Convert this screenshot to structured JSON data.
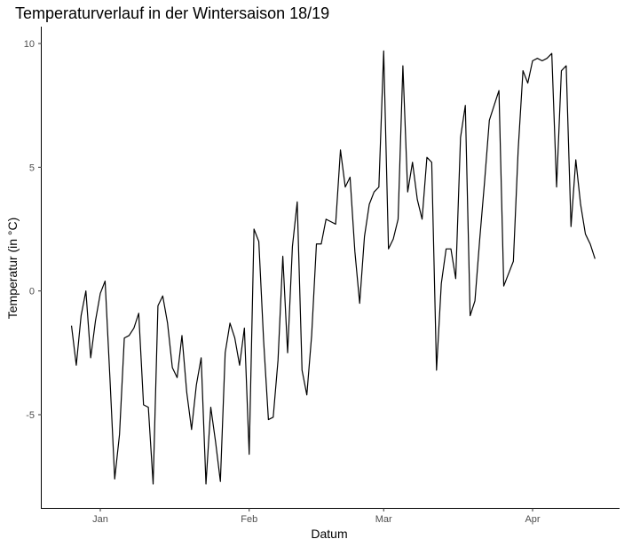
{
  "chart_data": {
    "type": "line",
    "title": "Temperaturverlauf in der Wintersaison 18/19",
    "xlabel": "Datum",
    "ylabel": "Temperatur (in °C)",
    "ylim": [
      -8.5,
      10.5
    ],
    "grid": false,
    "x_ticks": [
      {
        "label": "Jan",
        "date": "2019-01-01"
      },
      {
        "label": "Feb",
        "date": "2019-02-01"
      },
      {
        "label": "Mar",
        "date": "2019-03-01"
      },
      {
        "label": "Apr",
        "date": "2019-04-01"
      }
    ],
    "y_ticks": [
      10,
      5,
      0,
      -5
    ],
    "series": [
      {
        "color": "#000000",
        "points": [
          {
            "x": "2018-12-26",
            "y": -1.4
          },
          {
            "x": "2018-12-27",
            "y": -3.0
          },
          {
            "x": "2018-12-28",
            "y": -1.0
          },
          {
            "x": "2018-12-29",
            "y": 0.0
          },
          {
            "x": "2018-12-30",
            "y": -2.7
          },
          {
            "x": "2018-12-31",
            "y": -1.2
          },
          {
            "x": "2019-01-01",
            "y": -0.1
          },
          {
            "x": "2019-01-02",
            "y": 0.4
          },
          {
            "x": "2019-01-03",
            "y": -3.5
          },
          {
            "x": "2019-01-04",
            "y": -7.6
          },
          {
            "x": "2019-01-05",
            "y": -5.8
          },
          {
            "x": "2019-01-06",
            "y": -1.9
          },
          {
            "x": "2019-01-07",
            "y": -1.8
          },
          {
            "x": "2019-01-08",
            "y": -1.5
          },
          {
            "x": "2019-01-09",
            "y": -0.9
          },
          {
            "x": "2019-01-10",
            "y": -4.6
          },
          {
            "x": "2019-01-11",
            "y": -4.7
          },
          {
            "x": "2019-01-12",
            "y": -7.8
          },
          {
            "x": "2019-01-13",
            "y": -0.6
          },
          {
            "x": "2019-01-14",
            "y": -0.2
          },
          {
            "x": "2019-01-15",
            "y": -1.3
          },
          {
            "x": "2019-01-16",
            "y": -3.1
          },
          {
            "x": "2019-01-17",
            "y": -3.5
          },
          {
            "x": "2019-01-18",
            "y": -1.8
          },
          {
            "x": "2019-01-19",
            "y": -4.1
          },
          {
            "x": "2019-01-20",
            "y": -5.6
          },
          {
            "x": "2019-01-21",
            "y": -3.8
          },
          {
            "x": "2019-01-22",
            "y": -2.7
          },
          {
            "x": "2019-01-23",
            "y": -7.8
          },
          {
            "x": "2019-01-24",
            "y": -4.7
          },
          {
            "x": "2019-01-25",
            "y": -6.1
          },
          {
            "x": "2019-01-26",
            "y": -7.7
          },
          {
            "x": "2019-01-27",
            "y": -2.5
          },
          {
            "x": "2019-01-28",
            "y": -1.3
          },
          {
            "x": "2019-01-29",
            "y": -1.9
          },
          {
            "x": "2019-01-30",
            "y": -3.0
          },
          {
            "x": "2019-01-31",
            "y": -1.5
          },
          {
            "x": "2019-02-01",
            "y": -6.6
          },
          {
            "x": "2019-02-02",
            "y": 2.5
          },
          {
            "x": "2019-02-03",
            "y": 2.0
          },
          {
            "x": "2019-02-04",
            "y": -2.0
          },
          {
            "x": "2019-02-05",
            "y": -5.2
          },
          {
            "x": "2019-02-06",
            "y": -5.1
          },
          {
            "x": "2019-02-07",
            "y": -2.8
          },
          {
            "x": "2019-02-08",
            "y": 1.4
          },
          {
            "x": "2019-02-09",
            "y": -2.5
          },
          {
            "x": "2019-02-10",
            "y": 1.8
          },
          {
            "x": "2019-02-11",
            "y": 3.6
          },
          {
            "x": "2019-02-12",
            "y": -3.2
          },
          {
            "x": "2019-02-13",
            "y": -4.2
          },
          {
            "x": "2019-02-14",
            "y": -1.8
          },
          {
            "x": "2019-02-15",
            "y": 1.9
          },
          {
            "x": "2019-02-16",
            "y": 1.9
          },
          {
            "x": "2019-02-17",
            "y": 2.9
          },
          {
            "x": "2019-02-18",
            "y": 2.8
          },
          {
            "x": "2019-02-19",
            "y": 2.7
          },
          {
            "x": "2019-02-20",
            "y": 5.7
          },
          {
            "x": "2019-02-21",
            "y": 4.2
          },
          {
            "x": "2019-02-22",
            "y": 4.6
          },
          {
            "x": "2019-02-23",
            "y": 1.6
          },
          {
            "x": "2019-02-24",
            "y": -0.5
          },
          {
            "x": "2019-02-25",
            "y": 2.2
          },
          {
            "x": "2019-02-26",
            "y": 3.5
          },
          {
            "x": "2019-02-27",
            "y": 4.0
          },
          {
            "x": "2019-02-28",
            "y": 4.2
          },
          {
            "x": "2019-03-01",
            "y": 9.7
          },
          {
            "x": "2019-03-02",
            "y": 1.7
          },
          {
            "x": "2019-03-03",
            "y": 2.1
          },
          {
            "x": "2019-03-04",
            "y": 2.9
          },
          {
            "x": "2019-03-05",
            "y": 9.1
          },
          {
            "x": "2019-03-06",
            "y": 4.0
          },
          {
            "x": "2019-03-07",
            "y": 5.2
          },
          {
            "x": "2019-03-08",
            "y": 3.7
          },
          {
            "x": "2019-03-09",
            "y": 2.9
          },
          {
            "x": "2019-03-10",
            "y": 5.4
          },
          {
            "x": "2019-03-11",
            "y": 5.2
          },
          {
            "x": "2019-03-12",
            "y": -3.2
          },
          {
            "x": "2019-03-13",
            "y": 0.3
          },
          {
            "x": "2019-03-14",
            "y": 1.7
          },
          {
            "x": "2019-03-15",
            "y": 1.7
          },
          {
            "x": "2019-03-16",
            "y": 0.5
          },
          {
            "x": "2019-03-17",
            "y": 6.2
          },
          {
            "x": "2019-03-18",
            "y": 7.5
          },
          {
            "x": "2019-03-19",
            "y": -1.0
          },
          {
            "x": "2019-03-20",
            "y": -0.4
          },
          {
            "x": "2019-03-21",
            "y": 2.1
          },
          {
            "x": "2019-03-22",
            "y": 4.4
          },
          {
            "x": "2019-03-23",
            "y": 6.9
          },
          {
            "x": "2019-03-24",
            "y": 7.5
          },
          {
            "x": "2019-03-25",
            "y": 8.1
          },
          {
            "x": "2019-03-26",
            "y": 0.2
          },
          {
            "x": "2019-03-27",
            "y": 0.7
          },
          {
            "x": "2019-03-28",
            "y": 1.2
          },
          {
            "x": "2019-03-29",
            "y": 5.7
          },
          {
            "x": "2019-03-30",
            "y": 8.9
          },
          {
            "x": "2019-03-31",
            "y": 8.4
          },
          {
            "x": "2019-04-01",
            "y": 9.3
          },
          {
            "x": "2019-04-02",
            "y": 9.4
          },
          {
            "x": "2019-04-03",
            "y": 9.3
          },
          {
            "x": "2019-04-04",
            "y": 9.4
          },
          {
            "x": "2019-04-05",
            "y": 9.6
          },
          {
            "x": "2019-04-06",
            "y": 4.2
          },
          {
            "x": "2019-04-07",
            "y": 8.9
          },
          {
            "x": "2019-04-08",
            "y": 9.1
          },
          {
            "x": "2019-04-09",
            "y": 2.6
          },
          {
            "x": "2019-04-10",
            "y": 5.3
          },
          {
            "x": "2019-04-11",
            "y": 3.5
          },
          {
            "x": "2019-04-12",
            "y": 2.3
          },
          {
            "x": "2019-04-13",
            "y": 1.9
          },
          {
            "x": "2019-04-14",
            "y": 1.3
          }
        ]
      }
    ]
  }
}
